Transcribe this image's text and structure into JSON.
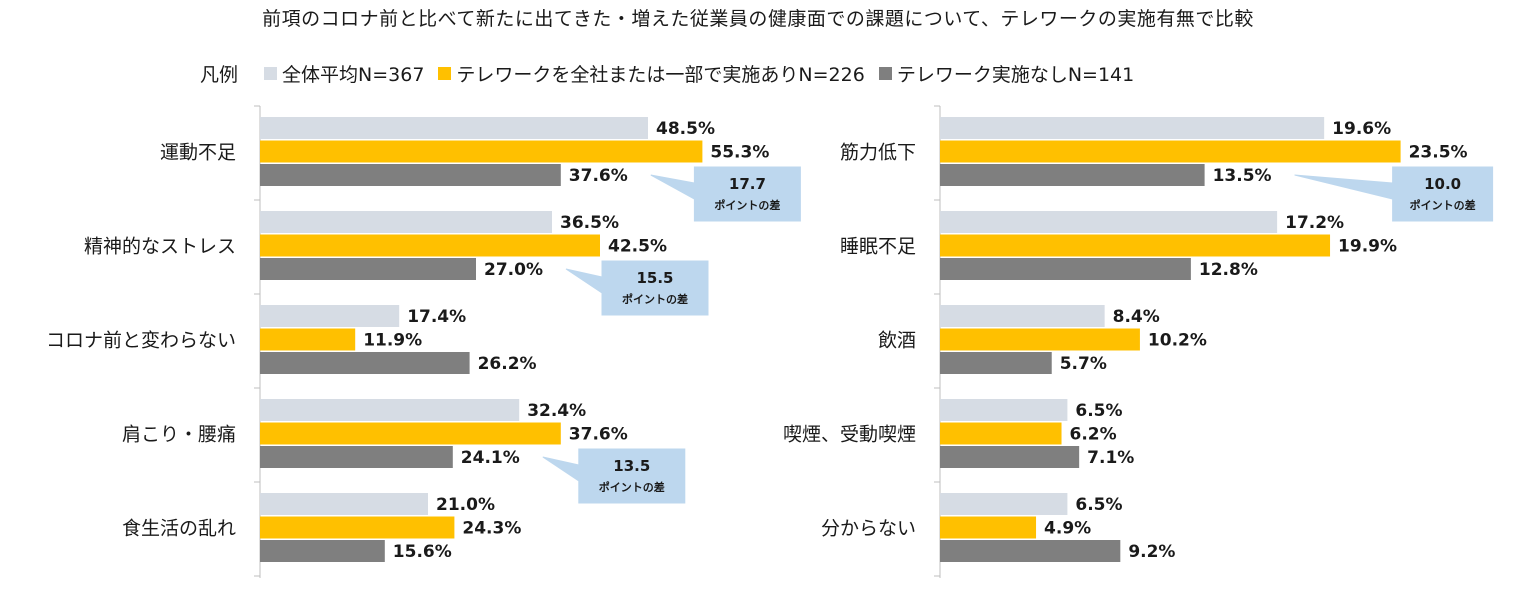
{
  "title": "前項のコロナ前と比べて新たに出てきた・増えた従業員の健康面での課題について、テレワークの実施有無で比較",
  "legend": {
    "title": "凡例",
    "items": [
      {
        "label": "全体平均N=367",
        "color": "#d6dce4"
      },
      {
        "label": "テレワークを全社または一部で実施ありN=226",
        "color": "#ffc000"
      },
      {
        "label": "テレワーク実施なしN=141",
        "color": "#7f7f7f"
      }
    ]
  },
  "chart_data": [
    {
      "type": "bar",
      "orientation": "horizontal",
      "categories": [
        "運動不足",
        "精神的なストレス",
        "コロナ前と変わらない",
        "肩こり・腰痛",
        "食生活の乱れ"
      ],
      "series": [
        {
          "name": "全体平均N=367",
          "color": "#d6dce4",
          "values": [
            48.5,
            36.5,
            17.4,
            32.4,
            21.0
          ]
        },
        {
          "name": "テレワークを全社または一部で実施ありN=226",
          "color": "#ffc000",
          "values": [
            55.3,
            42.5,
            11.9,
            37.6,
            24.3
          ]
        },
        {
          "name": "テレワーク実施なしN=141",
          "color": "#7f7f7f",
          "values": [
            37.6,
            27.0,
            26.2,
            24.1,
            15.6
          ]
        }
      ],
      "value_labels": [
        [
          "48.5%",
          "55.3%",
          "37.6%"
        ],
        [
          "36.5%",
          "42.5%",
          "27.0%"
        ],
        [
          "17.4%",
          "11.9%",
          "26.2%"
        ],
        [
          "32.4%",
          "37.6%",
          "24.1%"
        ],
        [
          "21.0%",
          "24.3%",
          "15.6%"
        ]
      ],
      "callouts": [
        {
          "category_index": 0,
          "value": "17.7",
          "text": "ポイントの差"
        },
        {
          "category_index": 1,
          "value": "15.5",
          "text": "ポイントの差"
        },
        {
          "category_index": 3,
          "value": "13.5",
          "text": "ポイントの差"
        }
      ]
    },
    {
      "type": "bar",
      "orientation": "horizontal",
      "categories": [
        "筋力低下",
        "睡眠不足",
        "飲酒",
        "喫煙、受動喫煙",
        "分からない"
      ],
      "series": [
        {
          "name": "全体平均N=367",
          "color": "#d6dce4",
          "values": [
            19.6,
            17.2,
            8.4,
            6.5,
            6.5
          ]
        },
        {
          "name": "テレワークを全社または一部で実施ありN=226",
          "color": "#ffc000",
          "values": [
            23.5,
            19.9,
            10.2,
            6.2,
            4.9
          ]
        },
        {
          "name": "テレワーク実施なしN=141",
          "color": "#7f7f7f",
          "values": [
            13.5,
            12.8,
            5.7,
            7.1,
            9.2
          ]
        }
      ],
      "value_labels": [
        [
          "19.6%",
          "23.5%",
          "13.5%"
        ],
        [
          "17.2%",
          "19.9%",
          "12.8%"
        ],
        [
          "8.4%",
          "10.2%",
          "5.7%"
        ],
        [
          "6.5%",
          "6.2%",
          "7.1%"
        ],
        [
          "6.5%",
          "4.9%",
          "9.2%"
        ]
      ],
      "callouts": [
        {
          "category_index": 0,
          "value": "10.0",
          "text": "ポイントの差"
        }
      ]
    }
  ]
}
